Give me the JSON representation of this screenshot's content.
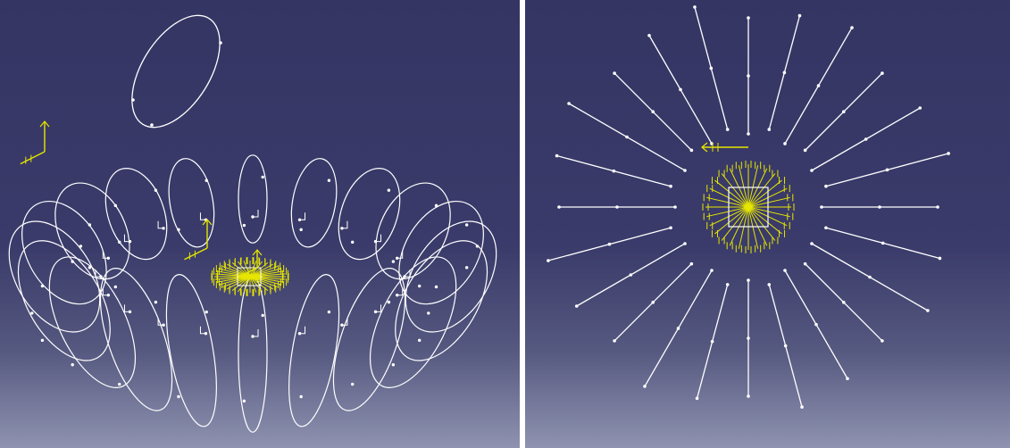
{
  "app": {
    "name": ""
  },
  "colors": {
    "background_top": "#353564",
    "background_bottom": "#8f93b0",
    "wireframe": "#ffffff",
    "constraint_symbols": "#e6e600"
  },
  "panels": [
    {
      "view": "isometric",
      "content": "sketch-loops-wireframe",
      "loop_count": 20
    },
    {
      "view": "top",
      "content": "sketch-lines-wireframe",
      "line_count": 24
    }
  ],
  "icons": {
    "axis": "axis-triad-icon",
    "constraint": "constraint-anchor-icon"
  }
}
